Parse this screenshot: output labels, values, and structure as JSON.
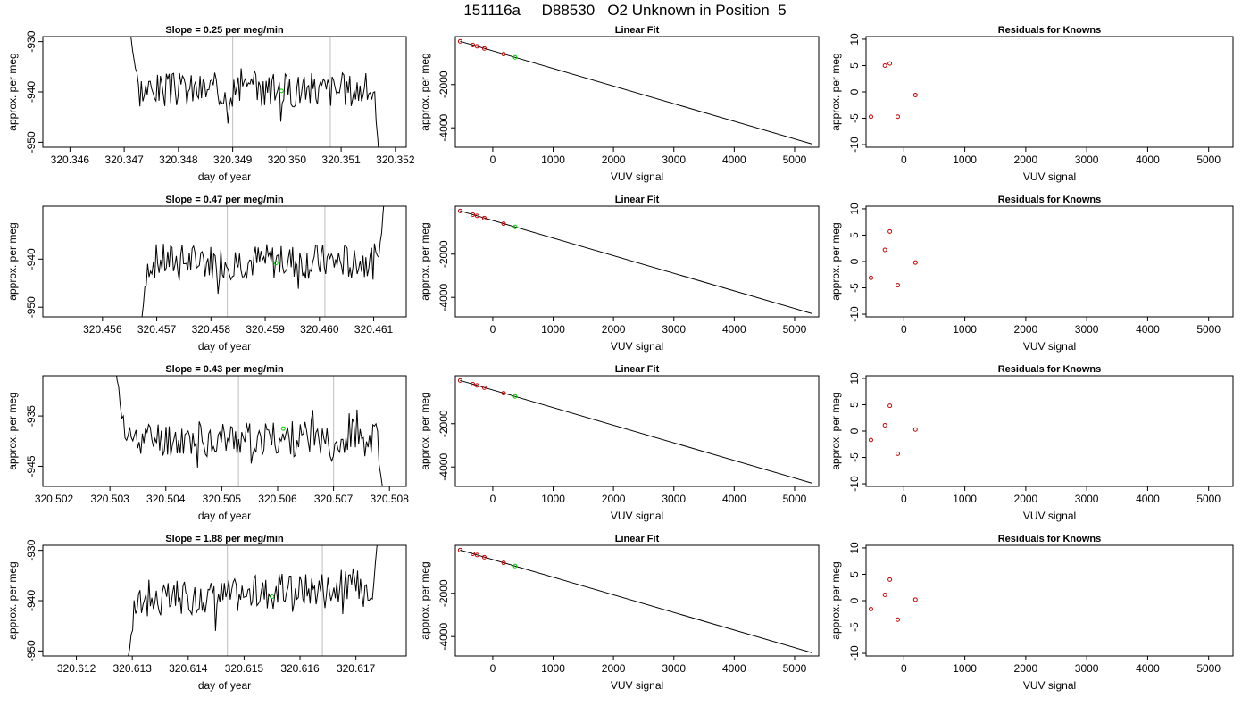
{
  "page_title": "151116a     D88530   O2 Unknown in Position  5",
  "colors": {
    "trace": "#000000",
    "marker_unknown": "#00cc00",
    "marker_known": "#cc0000",
    "vertical_line": "#c8c8c8"
  },
  "chart_data": [
    {
      "type": "line",
      "panel": "time-series-1",
      "title": "Slope =  0.25  per meg/min",
      "xlabel": "day of year",
      "ylabel": "approx. per meg",
      "xlim": [
        320.3455,
        320.3522
      ],
      "ylim": [
        -951,
        -929
      ],
      "xticks": [
        "320.346",
        "320.347",
        "320.348",
        "320.349",
        "320.350",
        "320.351",
        "320.352"
      ],
      "xtick_values": [
        320.346,
        320.347,
        320.348,
        320.349,
        320.35,
        320.351,
        320.352
      ],
      "yticks": [
        "-950",
        "-940",
        "-930"
      ],
      "ytick_values": [
        -950,
        -940,
        -930
      ],
      "x_start": 320.3471,
      "x_end": 320.3517,
      "center": -939.5,
      "spread": 2.5,
      "start_y": -927,
      "end_y": -953,
      "seed": 3,
      "vlines": [
        320.349,
        320.3508
      ],
      "marker": {
        "x": 320.3499,
        "y": -939.8
      }
    },
    {
      "type": "line",
      "panel": "time-series-2",
      "title": "Slope =  0.47  per meg/min",
      "xlabel": "day of year",
      "ylabel": "approx. per meg",
      "xlim": [
        320.4549,
        320.4616
      ],
      "ylim": [
        -952,
        -929
      ],
      "xticks": [
        "320.456",
        "320.457",
        "320.458",
        "320.459",
        "320.460",
        "320.461"
      ],
      "xtick_values": [
        320.456,
        320.457,
        320.458,
        320.459,
        320.46,
        320.461
      ],
      "yticks": [
        "-950",
        "-940"
      ],
      "ytick_values": [
        -950,
        -940
      ],
      "x_start": 320.4567,
      "x_end": 320.4612,
      "center": -940.5,
      "spread": 2.7,
      "start_y": -954,
      "end_y": -927,
      "seed": 7,
      "vlines": [
        320.4583,
        320.4601
      ],
      "marker": {
        "x": 320.4592,
        "y": -940.8
      }
    },
    {
      "type": "line",
      "panel": "time-series-3",
      "title": "Slope =  0.43  per meg/min",
      "xlabel": "day of year",
      "ylabel": "approx. per meg",
      "xlim": [
        320.5018,
        320.5083
      ],
      "ylim": [
        -949,
        -927
      ],
      "xticks": [
        "320.502",
        "320.503",
        "320.504",
        "320.505",
        "320.506",
        "320.507",
        "320.508"
      ],
      "xtick_values": [
        320.502,
        320.503,
        320.504,
        320.505,
        320.506,
        320.507,
        320.508
      ],
      "yticks": [
        "-945",
        "-935"
      ],
      "ytick_values": [
        -945,
        -935
      ],
      "x_start": 320.5031,
      "x_end": 320.5079,
      "center": -939.5,
      "spread": 2.6,
      "start_y": -925,
      "end_y": -951,
      "seed": 11,
      "vlines": [
        320.5053,
        320.507
      ],
      "marker": {
        "x": 320.5061,
        "y": -937.5
      }
    },
    {
      "type": "line",
      "panel": "time-series-4",
      "title": "Slope =  1.88  per meg/min",
      "xlabel": "day of year",
      "ylabel": "approx. per meg",
      "xlim": [
        320.6114,
        320.6179
      ],
      "ylim": [
        -951,
        -929
      ],
      "xticks": [
        "320.612",
        "320.613",
        "320.614",
        "320.615",
        "320.616",
        "320.617"
      ],
      "xtick_values": [
        320.612,
        320.613,
        320.614,
        320.615,
        320.616,
        320.617
      ],
      "yticks": [
        "-950",
        "-940",
        "-930"
      ],
      "ytick_values": [
        -950,
        -940,
        -930
      ],
      "x_start": 320.6129,
      "x_end": 320.6174,
      "center": -938.5,
      "spread": 2.5,
      "trend": 4,
      "start_y": -953,
      "end_y": -927,
      "seed": 17,
      "vlines": [
        320.6147,
        320.6164
      ],
      "marker": {
        "x": 320.6155,
        "y": -939.2
      }
    },
    {
      "type": "scatter",
      "panel": "linear-fit-1",
      "title": "Linear Fit",
      "xlabel": "VUV signal",
      "ylabel": "approx. per meg",
      "xlim": [
        -620,
        5400
      ],
      "ylim": [
        -4900,
        220
      ],
      "xticks": [
        "0",
        "1000",
        "2000",
        "3000",
        "4000",
        "5000"
      ],
      "xtick_values": [
        0,
        1000,
        2000,
        3000,
        4000,
        5000
      ],
      "yticks": [
        "-4000",
        "-2000"
      ],
      "ytick_values": [
        -4000,
        -2000
      ],
      "line": {
        "x": [
          -540,
          5290
        ],
        "y": [
          0,
          -4750
        ]
      },
      "known_points": {
        "x": [
          -540,
          -330,
          -260,
          -140,
          180
        ],
        "y": [
          0,
          -170,
          -230,
          -330,
          -590
        ]
      },
      "unknown_points": {
        "x": [
          370
        ],
        "y": [
          -740
        ]
      }
    },
    {
      "type": "scatter",
      "panel": "linear-fit-2",
      "title": "Linear Fit",
      "xlabel": "VUV signal",
      "ylabel": "approx. per meg",
      "xlim": [
        -620,
        5400
      ],
      "ylim": [
        -4900,
        220
      ],
      "xticks": [
        "0",
        "1000",
        "2000",
        "3000",
        "4000",
        "5000"
      ],
      "xtick_values": [
        0,
        1000,
        2000,
        3000,
        4000,
        5000
      ],
      "yticks": [
        "-4000",
        "-2000"
      ],
      "ytick_values": [
        -4000,
        -2000
      ],
      "line": {
        "x": [
          -540,
          5290
        ],
        "y": [
          0,
          -4750
        ]
      },
      "known_points": {
        "x": [
          -540,
          -330,
          -260,
          -140,
          180
        ],
        "y": [
          0,
          -170,
          -230,
          -330,
          -590
        ]
      },
      "unknown_points": {
        "x": [
          370
        ],
        "y": [
          -740
        ]
      }
    },
    {
      "type": "scatter",
      "panel": "linear-fit-3",
      "title": "Linear Fit",
      "xlabel": "VUV signal",
      "ylabel": "approx. per meg",
      "xlim": [
        -620,
        5400
      ],
      "ylim": [
        -4900,
        220
      ],
      "xticks": [
        "0",
        "1000",
        "2000",
        "3000",
        "4000",
        "5000"
      ],
      "xtick_values": [
        0,
        1000,
        2000,
        3000,
        4000,
        5000
      ],
      "yticks": [
        "-4000",
        "-2000"
      ],
      "ytick_values": [
        -4000,
        -2000
      ],
      "line": {
        "x": [
          -540,
          5290
        ],
        "y": [
          0,
          -4750
        ]
      },
      "known_points": {
        "x": [
          -540,
          -330,
          -260,
          -140,
          180
        ],
        "y": [
          0,
          -170,
          -230,
          -330,
          -590
        ]
      },
      "unknown_points": {
        "x": [
          370
        ],
        "y": [
          -740
        ]
      }
    },
    {
      "type": "scatter",
      "panel": "linear-fit-4",
      "title": "Linear Fit",
      "xlabel": "VUV signal",
      "ylabel": "approx. per meg",
      "xlim": [
        -620,
        5400
      ],
      "ylim": [
        -4900,
        220
      ],
      "xticks": [
        "0",
        "1000",
        "2000",
        "3000",
        "4000",
        "5000"
      ],
      "xtick_values": [
        0,
        1000,
        2000,
        3000,
        4000,
        5000
      ],
      "yticks": [
        "-4000",
        "-2000"
      ],
      "ytick_values": [
        -4000,
        -2000
      ],
      "line": {
        "x": [
          -540,
          5290
        ],
        "y": [
          0,
          -4750
        ]
      },
      "known_points": {
        "x": [
          -540,
          -330,
          -260,
          -140,
          180
        ],
        "y": [
          0,
          -170,
          -230,
          -330,
          -590
        ]
      },
      "unknown_points": {
        "x": [
          370
        ],
        "y": [
          -740
        ]
      }
    },
    {
      "type": "scatter",
      "panel": "residuals-1",
      "title": "Residuals for Knowns",
      "xlabel": "VUV signal",
      "ylabel": "approx. per meg",
      "xlim": [
        -620,
        5400
      ],
      "ylim": [
        -10.5,
        10.5
      ],
      "xticks": [
        "0",
        "1000",
        "2000",
        "3000",
        "4000",
        "5000"
      ],
      "xtick_values": [
        0,
        1000,
        2000,
        3000,
        4000,
        5000
      ],
      "yticks": [
        "-10",
        "-5",
        "0",
        "5",
        "10"
      ],
      "ytick_values": [
        -10,
        -5,
        0,
        5,
        10
      ],
      "known_points": {
        "x": [
          -540,
          -310,
          -230,
          -100,
          190
        ],
        "y": [
          -4.7,
          5.0,
          5.4,
          -4.7,
          -0.6
        ]
      }
    },
    {
      "type": "scatter",
      "panel": "residuals-2",
      "title": "Residuals for Knowns",
      "xlabel": "VUV signal",
      "ylabel": "approx. per meg",
      "xlim": [
        -620,
        5400
      ],
      "ylim": [
        -10.5,
        10.5
      ],
      "xticks": [
        "0",
        "1000",
        "2000",
        "3000",
        "4000",
        "5000"
      ],
      "xtick_values": [
        0,
        1000,
        2000,
        3000,
        4000,
        5000
      ],
      "yticks": [
        "-10",
        "-5",
        "0",
        "5",
        "10"
      ],
      "ytick_values": [
        -10,
        -5,
        0,
        5,
        10
      ],
      "known_points": {
        "x": [
          -540,
          -310,
          -230,
          -100,
          190
        ],
        "y": [
          -3.1,
          2.2,
          5.7,
          -4.5,
          -0.2
        ]
      }
    },
    {
      "type": "scatter",
      "panel": "residuals-3",
      "title": "Residuals for Knowns",
      "xlabel": "VUV signal",
      "ylabel": "approx. per meg",
      "xlim": [
        -620,
        5400
      ],
      "ylim": [
        -10.5,
        10.5
      ],
      "xticks": [
        "0",
        "1000",
        "2000",
        "3000",
        "4000",
        "5000"
      ],
      "xtick_values": [
        0,
        1000,
        2000,
        3000,
        4000,
        5000
      ],
      "yticks": [
        "-10",
        "-5",
        "0",
        "5",
        "10"
      ],
      "ytick_values": [
        -10,
        -5,
        0,
        5,
        10
      ],
      "known_points": {
        "x": [
          -540,
          -310,
          -230,
          -100,
          190
        ],
        "y": [
          -1.7,
          1.1,
          4.8,
          -4.3,
          0.3
        ]
      }
    },
    {
      "type": "scatter",
      "panel": "residuals-4",
      "title": "Residuals for Knowns",
      "xlabel": "VUV signal",
      "ylabel": "approx. per meg",
      "xlim": [
        -620,
        5400
      ],
      "ylim": [
        -10.5,
        10.5
      ],
      "xticks": [
        "0",
        "1000",
        "2000",
        "3000",
        "4000",
        "5000"
      ],
      "xtick_values": [
        0,
        1000,
        2000,
        3000,
        4000,
        5000
      ],
      "yticks": [
        "-10",
        "-5",
        "0",
        "5",
        "10"
      ],
      "ytick_values": [
        -10,
        -5,
        0,
        5,
        10
      ],
      "known_points": {
        "x": [
          -540,
          -310,
          -230,
          -100,
          190
        ],
        "y": [
          -1.6,
          1.1,
          4.0,
          -3.6,
          0.2
        ]
      }
    }
  ]
}
